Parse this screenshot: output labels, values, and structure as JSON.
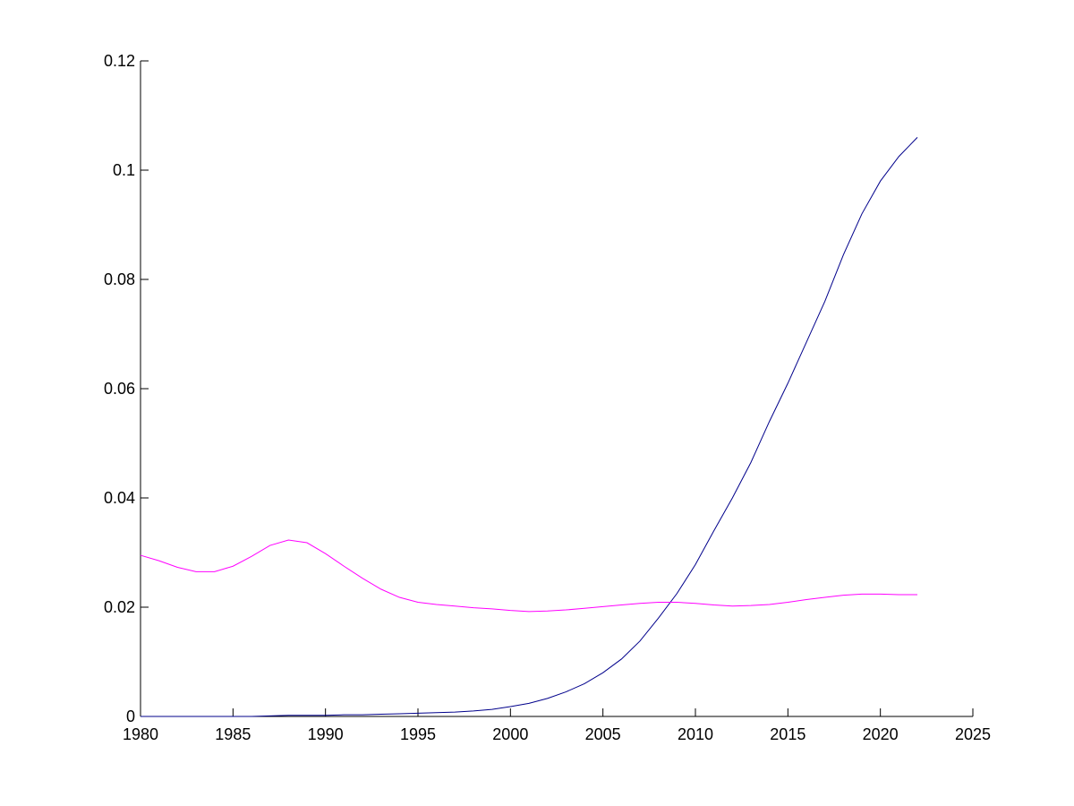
{
  "chart_data": {
    "type": "line",
    "x": [
      1980,
      1981,
      1982,
      1983,
      1984,
      1985,
      1986,
      1987,
      1988,
      1989,
      1990,
      1991,
      1992,
      1993,
      1994,
      1995,
      1996,
      1997,
      1998,
      1999,
      2000,
      2001,
      2002,
      2003,
      2004,
      2005,
      2006,
      2007,
      2008,
      2009,
      2010,
      2011,
      2012,
      2013,
      2014,
      2015,
      2016,
      2017,
      2018,
      2019,
      2020,
      2021,
      2022
    ],
    "series": [
      {
        "color": "#00008b",
        "values": [
          0,
          0,
          0,
          0,
          0,
          0,
          0,
          0.0001,
          0.0002,
          0.0002,
          0.0002,
          0.0003,
          0.0003,
          0.0004,
          0.0005,
          0.0006,
          0.0007,
          0.0008,
          0.001,
          0.0013,
          0.0018,
          0.0024,
          0.0033,
          0.0045,
          0.006,
          0.008,
          0.0105,
          0.0138,
          0.018,
          0.0225,
          0.0278,
          0.034,
          0.04,
          0.0465,
          0.054,
          0.061,
          0.0685,
          0.076,
          0.0845,
          0.092,
          0.098,
          0.1025,
          0.106
        ]
      },
      {
        "color": "#ff00ff",
        "values": [
          0.0295,
          0.0285,
          0.0273,
          0.0265,
          0.0265,
          0.0275,
          0.0293,
          0.0313,
          0.0323,
          0.0318,
          0.0298,
          0.0275,
          0.0253,
          0.0233,
          0.0218,
          0.0209,
          0.0205,
          0.0202,
          0.0199,
          0.0197,
          0.0194,
          0.0192,
          0.0193,
          0.0195,
          0.0198,
          0.0201,
          0.0204,
          0.0207,
          0.0209,
          0.0209,
          0.0207,
          0.0204,
          0.0202,
          0.0203,
          0.0205,
          0.0209,
          0.0214,
          0.0218,
          0.0222,
          0.0224,
          0.0224,
          0.0223,
          0.0223
        ]
      }
    ],
    "xlim": [
      1980,
      2025
    ],
    "xticks": [
      1980,
      1985,
      1990,
      1995,
      2000,
      2005,
      2010,
      2015,
      2020,
      2025
    ],
    "ylim": [
      0,
      0.12
    ],
    "yticks": [
      0,
      0.02,
      0.04,
      0.06,
      0.08,
      0.1,
      0.12
    ]
  }
}
